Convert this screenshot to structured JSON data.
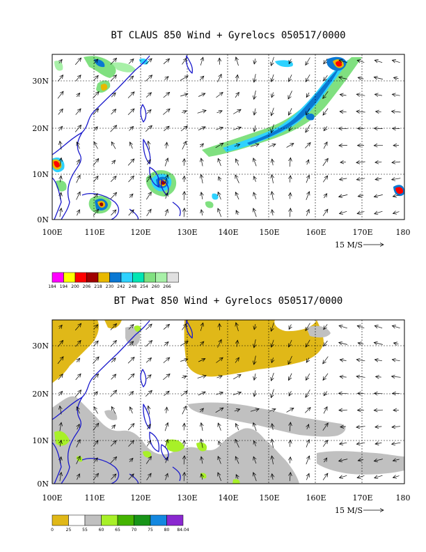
{
  "maps": [
    {
      "id": "top",
      "title": "BT CLAUS 850 Wind + Gyrelocs 050517/0000",
      "lat_labels": [
        "0N",
        "10N",
        "20N",
        "30N"
      ],
      "lon_labels": [
        "100E",
        "110E",
        "120E",
        "130E",
        "140E",
        "150E",
        "160E",
        "170E",
        "180"
      ],
      "vector_scale": {
        "label": "15 M/S",
        "arrow": "⟶"
      },
      "colorbar": {
        "colors": [
          "#ff00ff",
          "#ffff00",
          "#ff0000",
          "#a00000",
          "#e8b800",
          "#0a78d2",
          "#2ed2ff",
          "#00e6b4",
          "#80e080",
          "#a8f0a8",
          "#e0e0e0"
        ],
        "labels": [
          "184",
          "194",
          "200",
          "206",
          "218",
          "230",
          "242",
          "248",
          "254",
          "260",
          "266"
        ]
      }
    },
    {
      "id": "bottom",
      "title": "BT Pwat 850 Wind + Gyrelocs 050517/0000",
      "lat_labels": [
        "0N",
        "10N",
        "20N",
        "30N"
      ],
      "lon_labels": [
        "100E",
        "110E",
        "120E",
        "130E",
        "140E",
        "150E",
        "160E",
        "170E",
        "180"
      ],
      "vector_scale": {
        "label": "15 M/S",
        "arrow": "⟶"
      },
      "colorbar": {
        "colors": [
          "#e0b818",
          "#ffffff",
          "#c0c0c0",
          "#a8f028",
          "#44b400",
          "#189418",
          "#1488e0",
          "#8a28d0"
        ],
        "labels": [
          "0",
          "25",
          "55",
          "60",
          "65",
          "70",
          "75",
          "80",
          "84.04"
        ]
      }
    }
  ]
}
